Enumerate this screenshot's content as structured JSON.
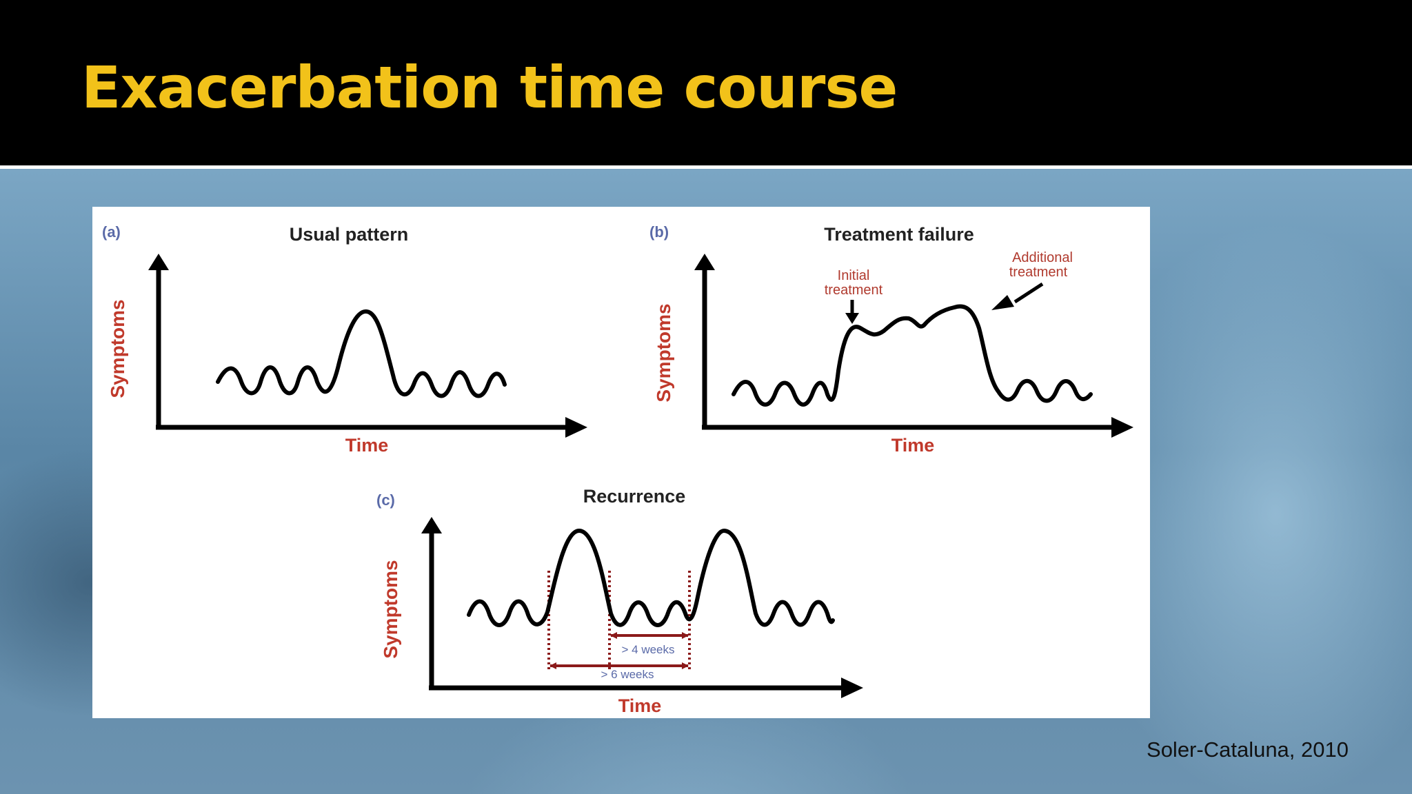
{
  "slide": {
    "title": "Exacerbation time course",
    "citation": "Soler-Cataluna, 2010"
  },
  "figure": {
    "panel_a": {
      "tag": "(a)",
      "title": "Usual pattern",
      "ylabel": "Symptoms",
      "xlabel": "Time"
    },
    "panel_b": {
      "tag": "(b)",
      "title": "Treatment failure",
      "ylabel": "Symptoms",
      "xlabel": "Time",
      "annotation_initial_line1": "Initial",
      "annotation_initial_line2": "treatment",
      "annotation_additional_line1": "Additional",
      "annotation_additional_line2": "treatment"
    },
    "panel_c": {
      "tag": "(c)",
      "title": "Recurrence",
      "ylabel": "Symptoms",
      "xlabel": "Time",
      "interval_short": "> 4 weeks",
      "interval_long": "> 6 weeks"
    }
  },
  "colors": {
    "title_yellow": "#f2c21a",
    "axis_label_red": "#c0392b",
    "panel_tag_blue": "#5a6aa8",
    "interval_arrow_red": "#8b1a1a"
  }
}
